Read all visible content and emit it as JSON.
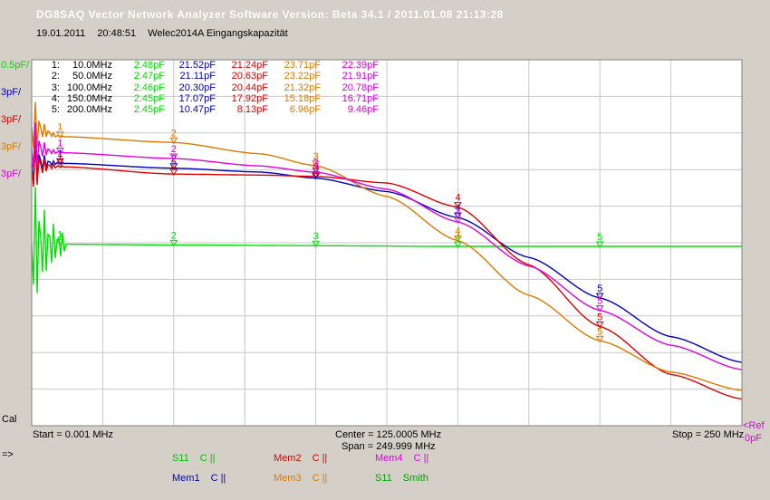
{
  "app_title": "DG8SAQ Vector Network Analyzer Software   Version:  Beta 34.1 / 2011.01.08 21:13:28",
  "info": {
    "date": "19.01.2011",
    "time": "20:48:51",
    "name": "Welec2014A Eingangskapazität"
  },
  "scale_labels": [
    {
      "text": "0.5pF/",
      "color": "#00e000"
    },
    {
      "text": "3pF/",
      "color": "#0000c0"
    },
    {
      "text": "3pF/",
      "color": "#e00000"
    },
    {
      "text": "3pF/",
      "color": "#e07800"
    },
    {
      "text": "3pF/",
      "color": "#e000e0"
    }
  ],
  "cal_label": "Cal",
  "ref_label": "<Ref",
  "zero_label": "0pF",
  "axis": {
    "start": "Start = 0.001 MHz",
    "center": "Center = 125.0005 MHz",
    "span": "Span = 249.999 MHz",
    "stop": "Stop = 250 MHz"
  },
  "arrow": "=>",
  "marker_table": [
    {
      "num": "1:",
      "freq": "10.0MHz",
      "v": [
        "2.48pF",
        "21.52pF",
        "21.24pF",
        "23.71pF",
        "22.39pF"
      ]
    },
    {
      "num": "2:",
      "freq": "50.0MHz",
      "v": [
        "2.47pF",
        "21.11pF",
        "20.63pF",
        "23.22pF",
        "21.91pF"
      ]
    },
    {
      "num": "3:",
      "freq": "100.0MHz",
      "v": [
        "2.46pF",
        "20.30pF",
        "20.44pF",
        "21.32pF",
        "20.78pF"
      ]
    },
    {
      "num": "4:",
      "freq": "150.0MHz",
      "v": [
        "2.45pF",
        "17.07pF",
        "17.92pF",
        "15.18pF",
        "16.71pF"
      ]
    },
    {
      "num": "5:",
      "freq": "200.0MHz",
      "v": [
        "2.45pF",
        "10.47pF",
        "8.13pF",
        "6.96pF",
        "9.46pF"
      ]
    }
  ],
  "legend": [
    {
      "name": "S11",
      "type": "C ||",
      "color": "#00c000"
    },
    {
      "name": "Mem1",
      "type": "C ||",
      "color": "#0000c0"
    },
    {
      "name": "Mem2",
      "type": "C ||",
      "color": "#e00000"
    },
    {
      "name": "Mem3",
      "type": "C ||",
      "color": "#e07800"
    },
    {
      "name": "Mem4",
      "type": "C ||",
      "color": "#e000e0"
    },
    {
      "name": "S11",
      "type": "Smith",
      "color": "#00a000"
    }
  ],
  "chart_data": {
    "type": "line",
    "xlim": [
      0.001,
      250
    ],
    "grid": true,
    "marker_freqs": [
      10,
      50,
      100,
      150,
      200
    ],
    "series": [
      {
        "color": "#00e000",
        "scale_per_div": 0.5,
        "ref": 0,
        "points": [
          [
            0.001,
            2.48
          ],
          [
            10,
            2.48
          ],
          [
            50,
            2.47
          ],
          [
            100,
            2.46
          ],
          [
            150,
            2.45
          ],
          [
            200,
            2.45
          ],
          [
            250,
            2.45
          ]
        ]
      },
      {
        "color": "#0000c0",
        "scale_per_div": 3,
        "ref": 0,
        "points": [
          [
            0.001,
            21.6
          ],
          [
            10,
            21.52
          ],
          [
            50,
            21.11
          ],
          [
            80,
            20.8
          ],
          [
            100,
            20.3
          ],
          [
            125,
            19.2
          ],
          [
            150,
            17.07
          ],
          [
            175,
            13.8
          ],
          [
            200,
            10.47
          ],
          [
            225,
            7.3
          ],
          [
            250,
            5.2
          ]
        ]
      },
      {
        "color": "#e00000",
        "scale_per_div": 3,
        "ref": 0,
        "points": [
          [
            0.001,
            21.3
          ],
          [
            10,
            21.24
          ],
          [
            50,
            20.63
          ],
          [
            80,
            20.55
          ],
          [
            100,
            20.44
          ],
          [
            125,
            19.9
          ],
          [
            150,
            17.92
          ],
          [
            175,
            13.2
          ],
          [
            200,
            8.13
          ],
          [
            225,
            4.2
          ],
          [
            250,
            2.2
          ]
        ]
      },
      {
        "color": "#e07800",
        "scale_per_div": 3,
        "ref": 0,
        "points": [
          [
            0.001,
            24.5
          ],
          [
            10,
            23.71
          ],
          [
            50,
            23.22
          ],
          [
            80,
            22.3
          ],
          [
            100,
            21.32
          ],
          [
            125,
            18.8
          ],
          [
            150,
            15.18
          ],
          [
            175,
            10.7
          ],
          [
            200,
            6.96
          ],
          [
            225,
            4.4
          ],
          [
            250,
            2.9
          ]
        ]
      },
      {
        "color": "#e000e0",
        "scale_per_div": 3,
        "ref": 0,
        "points": [
          [
            0.001,
            22.8
          ],
          [
            10,
            22.39
          ],
          [
            50,
            21.91
          ],
          [
            80,
            21.3
          ],
          [
            100,
            20.78
          ],
          [
            125,
            19.4
          ],
          [
            150,
            16.71
          ],
          [
            175,
            13.1
          ],
          [
            200,
            9.46
          ],
          [
            225,
            6.6
          ],
          [
            250,
            4.6
          ]
        ]
      }
    ]
  }
}
